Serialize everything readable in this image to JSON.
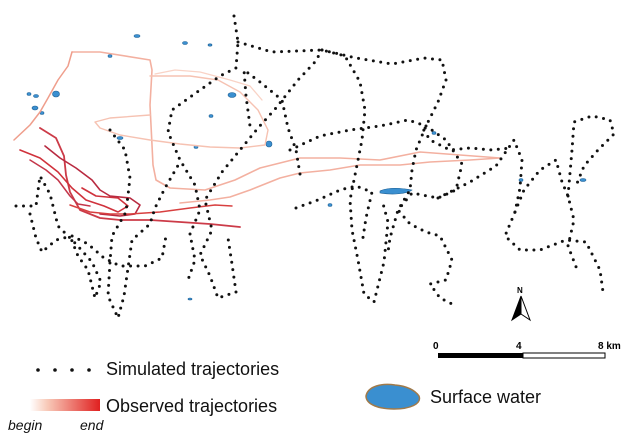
{
  "legend": {
    "simulated_label": "Simulated trajectories",
    "observed_label": "Observed  trajectories",
    "surface_water_label": "Surface water",
    "gradient_begin_label": "begin",
    "gradient_end_label": "end"
  },
  "scale_bar": {
    "tick_0": "0",
    "tick_4": "4",
    "tick_8": "8 km"
  },
  "north_arrow": {
    "label": "N"
  },
  "colors": {
    "simulated": "#111111",
    "observed_begin": "#f8c9b8",
    "observed_end": "#d42020",
    "water_fill": "#3a8fd0",
    "water_stroke": "#1d5f93",
    "legend_water_stroke": "#a07a4a"
  }
}
